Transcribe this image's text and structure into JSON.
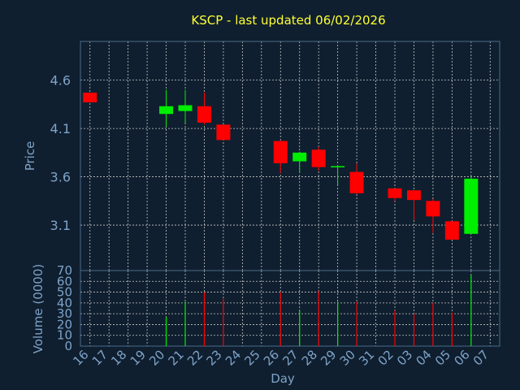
{
  "chart_data": {
    "type": "candlestick",
    "title": "KSCP - last updated 06/02/2026",
    "xlabel": "Day",
    "x_ticks": [
      "16",
      "17",
      "18",
      "19",
      "20",
      "21",
      "22",
      "23",
      "24",
      "25",
      "26",
      "27",
      "28",
      "29",
      "30",
      "31",
      "02",
      "03",
      "04",
      "05",
      "06",
      "07"
    ],
    "price_panel": {
      "ylabel": "Price",
      "ylim": [
        2.63,
        5.0
      ],
      "y_ticks": [
        3.1,
        3.6,
        4.1,
        4.6
      ],
      "y_tick_labels": [
        "3.1",
        "3.6",
        "4.1",
        "4.6"
      ],
      "candles": [
        {
          "day": "16",
          "open": 4.47,
          "high": 4.47,
          "low": 4.37,
          "close": 4.37
        },
        {
          "day": "20",
          "open": 4.25,
          "high": 4.5,
          "low": 4.12,
          "close": 4.33
        },
        {
          "day": "21",
          "open": 4.28,
          "high": 4.5,
          "low": 4.16,
          "close": 4.34
        },
        {
          "day": "22",
          "open": 4.33,
          "high": 4.47,
          "low": 4.14,
          "close": 4.16
        },
        {
          "day": "23",
          "open": 4.14,
          "high": 4.14,
          "low": 3.98,
          "close": 3.98
        },
        {
          "day": "26",
          "open": 3.97,
          "high": 3.97,
          "low": 3.64,
          "close": 3.74
        },
        {
          "day": "27",
          "open": 3.76,
          "high": 3.86,
          "low": 3.64,
          "close": 3.85
        },
        {
          "day": "28",
          "open": 3.88,
          "high": 3.91,
          "low": 3.66,
          "close": 3.7
        },
        {
          "day": "29",
          "open": 3.7,
          "high": 3.72,
          "low": 3.52,
          "close": 3.71
        },
        {
          "day": "30",
          "open": 3.65,
          "high": 3.74,
          "low": 3.42,
          "close": 3.43
        },
        {
          "day": "02",
          "open": 3.48,
          "high": 3.48,
          "low": 3.35,
          "close": 3.38
        },
        {
          "day": "03",
          "open": 3.46,
          "high": 3.46,
          "low": 3.15,
          "close": 3.36
        },
        {
          "day": "04",
          "open": 3.35,
          "high": 3.37,
          "low": 3.02,
          "close": 3.19
        },
        {
          "day": "05",
          "open": 3.14,
          "high": 3.14,
          "low": 2.96,
          "close": 2.95
        },
        {
          "day": "06",
          "open": 3.01,
          "high": 3.6,
          "low": 3.01,
          "close": 3.58
        }
      ]
    },
    "volume_panel": {
      "ylabel": "Volume (0000)",
      "ylim": [
        0,
        70
      ],
      "y_ticks": [
        0,
        10,
        20,
        30,
        40,
        50,
        60,
        70
      ],
      "y_tick_labels": [
        "0",
        "10",
        "20",
        "30",
        "40",
        "50",
        "60",
        "70"
      ],
      "bars": [
        {
          "day": "20",
          "value": 27,
          "direction": "up"
        },
        {
          "day": "21",
          "value": 41,
          "direction": "up"
        },
        {
          "day": "22",
          "value": 50,
          "direction": "down"
        },
        {
          "day": "23",
          "value": 44,
          "direction": "down"
        },
        {
          "day": "26",
          "value": 50,
          "direction": "down"
        },
        {
          "day": "27",
          "value": 33,
          "direction": "up"
        },
        {
          "day": "28",
          "value": 51,
          "direction": "down"
        },
        {
          "day": "29",
          "value": 41,
          "direction": "up"
        },
        {
          "day": "30",
          "value": 41,
          "direction": "down"
        },
        {
          "day": "02",
          "value": 33,
          "direction": "down"
        },
        {
          "day": "03",
          "value": 30,
          "direction": "down"
        },
        {
          "day": "04",
          "value": 40,
          "direction": "down"
        },
        {
          "day": "05",
          "value": 31,
          "direction": "down"
        },
        {
          "day": "06",
          "value": 66,
          "direction": "up"
        }
      ]
    },
    "grid": true,
    "legend": "none"
  },
  "colors": {
    "background": "#0f1f2f",
    "plot_border": "#4b6b8a",
    "grid": "#c8c8c8",
    "title": "#ffff33",
    "axis_text": "#7fa3c8",
    "up": "#00ee00",
    "down": "#ff0000"
  }
}
